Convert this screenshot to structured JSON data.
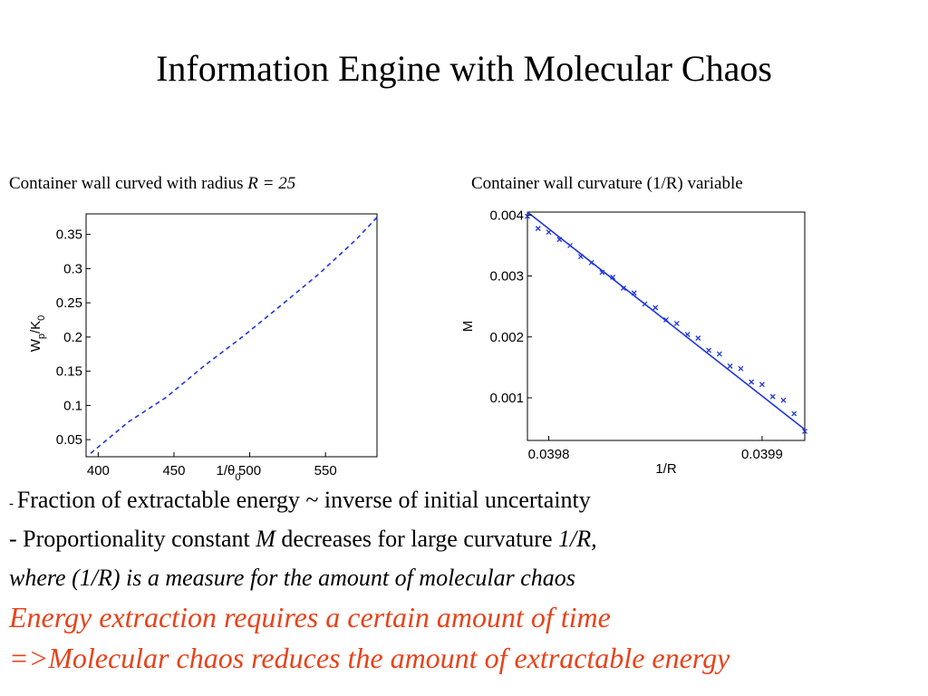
{
  "title": "Information Engine with Molecular Chaos",
  "captions": {
    "left_prefix": "Container wall curved with radius ",
    "left_var": "R = 25",
    "right": "Container wall curvature (1/R) variable"
  },
  "chart_data": [
    {
      "type": "line",
      "xlabel": "1/θ",
      "xlabel_sub": "0",
      "ylabel": "W",
      "ylabel_sub1": "p",
      "ylabel_mid": "/K",
      "ylabel_sub2": "0",
      "xlim": [
        392,
        584
      ],
      "ylim": [
        0.025,
        0.38
      ],
      "xticks": [
        "400",
        "450",
        "500",
        "550"
      ],
      "xtick_values": [
        400,
        450,
        500,
        550
      ],
      "yticks": [
        "0.05",
        "0.1",
        "0.15",
        "0.2",
        "0.25",
        "0.3",
        "0.35"
      ],
      "ytick_values": [
        0.05,
        0.1,
        0.15,
        0.2,
        0.25,
        0.3,
        0.35
      ],
      "series": [
        {
          "style": "dashed",
          "color": "#1f35e0",
          "x": [
            395,
            420,
            445,
            470,
            495,
            520,
            545,
            570,
            584
          ],
          "y": [
            0.03,
            0.076,
            0.112,
            0.158,
            0.2,
            0.245,
            0.291,
            0.342,
            0.375
          ]
        }
      ],
      "grid": false
    },
    {
      "type": "scatter",
      "xlabel": "1/R",
      "ylabel": "M",
      "xlim": [
        0.03979,
        0.03992
      ],
      "ylim": [
        0.0003,
        0.00405
      ],
      "xticks": [
        "0.0398",
        "0.0399"
      ],
      "xtick_values": [
        0.0398,
        0.0399
      ],
      "yticks": [
        "0.001",
        "0.002",
        "0.003",
        "0.004"
      ],
      "ytick_values": [
        0.001,
        0.002,
        0.003,
        0.004
      ],
      "series": [
        {
          "style": "solid-fit",
          "color": "#1f35e0",
          "x": [
            0.03979,
            0.03992
          ],
          "y": [
            0.00405,
            0.00048
          ]
        },
        {
          "style": "markers",
          "color": "#1f35e0",
          "x": [
            0.03979,
            0.039795,
            0.0398,
            0.039805,
            0.03981,
            0.039815,
            0.03982,
            0.039825,
            0.03983,
            0.039835,
            0.03984,
            0.039845,
            0.03985,
            0.039855,
            0.03986,
            0.039865,
            0.03987,
            0.039875,
            0.03988,
            0.039885,
            0.03989,
            0.039895,
            0.0399,
            0.039905,
            0.03991,
            0.039915,
            0.03992
          ],
          "y": [
            0.00398,
            0.00378,
            0.00372,
            0.0036,
            0.0035,
            0.00332,
            0.00322,
            0.00306,
            0.00298,
            0.0028,
            0.00272,
            0.00254,
            0.00248,
            0.00228,
            0.00222,
            0.00204,
            0.00198,
            0.00178,
            0.00172,
            0.00152,
            0.00148,
            0.00126,
            0.00122,
            0.00102,
            0.00096,
            0.00074,
            0.00045
          ]
        }
      ],
      "grid": false
    }
  ],
  "bullets": {
    "line1_dash": "- ",
    "line1_text": "Fraction of extractable energy ~ inverse of initial uncertainty",
    "line2_a": "- Proportionality constant ",
    "line2_m": "M",
    "line2_b": " decreases for large curvature ",
    "line2_r": "1/R,",
    "line3": "where (1/R) is a measure for the amount of molecular chaos",
    "line4": "Energy extraction requires a certain amount of time",
    "line5": "=>Molecular chaos reduces the amount of extractable energy"
  }
}
